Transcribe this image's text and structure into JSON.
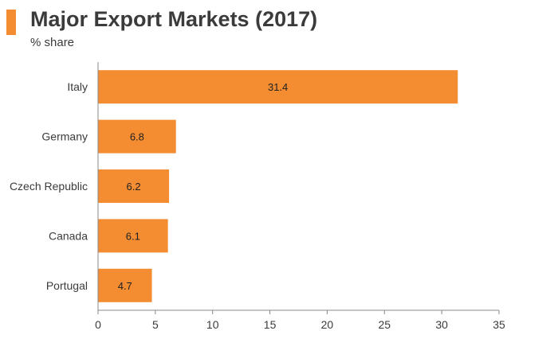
{
  "title": "Major Export Markets (2017)",
  "subtitle": "% share",
  "colors": {
    "accent": "#f48c32",
    "bar": "#f48c32",
    "axis": "#888888",
    "text": "#3b3b3b"
  },
  "chart_data": {
    "type": "bar",
    "orientation": "horizontal",
    "title": "Major Export Markets (2017)",
    "subtitle": "% share",
    "categories": [
      "Italy",
      "Germany",
      "Czech Republic",
      "Canada",
      "Portugal"
    ],
    "values": [
      31.4,
      6.8,
      6.2,
      6.1,
      4.7
    ],
    "value_labels": [
      "31.4",
      "6.8",
      "6.2",
      "6.1",
      "4.7"
    ],
    "xlim": [
      0,
      35
    ],
    "xticks": [
      0,
      5,
      10,
      15,
      20,
      25,
      30,
      35
    ],
    "xtick_labels": [
      "0",
      "5",
      "10",
      "15",
      "20",
      "25",
      "30",
      "35"
    ],
    "xlabel": "",
    "ylabel": "",
    "grid": false,
    "legend": "none"
  }
}
